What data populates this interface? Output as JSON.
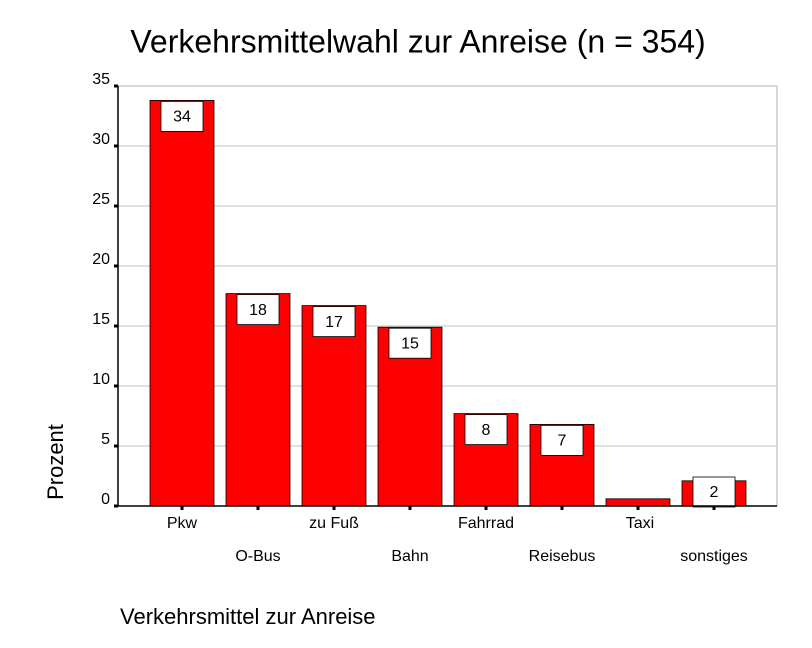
{
  "chart_data": {
    "type": "bar",
    "title": "Verkehrsmittelwahl zur Anreise (n = 354)",
    "x_label": "Verkehrsmittel zur Anreise",
    "y_label": "Prozent",
    "categories": [
      "Pkw",
      "O-Bus",
      "zu Fuß",
      "Bahn",
      "Fahrrad",
      "Reisebus",
      "Taxi",
      "sonstiges"
    ],
    "values": [
      33.8,
      17.7,
      16.7,
      14.9,
      7.7,
      6.8,
      0.6,
      2.1
    ],
    "value_labels": [
      "34",
      "18",
      "17",
      "15",
      "8",
      "7",
      null,
      "2"
    ],
    "color": "#ff0000",
    "ylim": [
      0,
      35
    ],
    "yticks": [
      0,
      5,
      10,
      15,
      20,
      25,
      30,
      35
    ],
    "grid": true
  }
}
